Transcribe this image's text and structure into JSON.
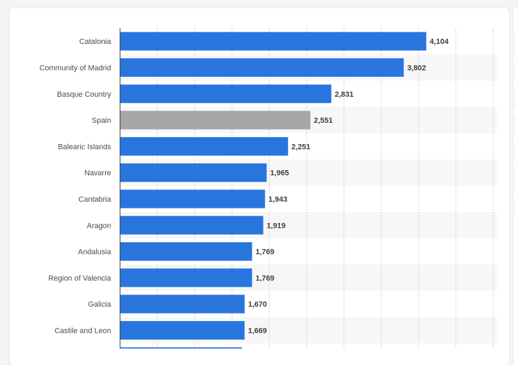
{
  "chart_data": {
    "type": "bar",
    "orientation": "horizontal",
    "categories": [
      "Catalonia",
      "Community of Madrid",
      "Basque Country",
      "Spain",
      "Balearic Islands",
      "Navarre",
      "Cantabria",
      "Aragon",
      "Andalusia",
      "Region of Valencia",
      "Galicia",
      "Castile and Leon"
    ],
    "values": [
      4104,
      3802,
      2831,
      2551,
      2251,
      1965,
      1943,
      1919,
      1769,
      1769,
      1670,
      1669
    ],
    "value_labels": [
      "4,104",
      "3,802",
      "2,831",
      "2,551",
      "2,251",
      "1,965",
      "1,943",
      "1,919",
      "1,769",
      "1,769",
      "1,670",
      "1,669"
    ],
    "highlight_category": "Spain",
    "colors": {
      "bar": "#2876dd",
      "highlight": "#a6a6a6",
      "band": "#f7f7f7",
      "grid": "#cccccc",
      "axis": "#333333"
    },
    "xlim": [
      0,
      5000
    ],
    "grid": true,
    "legend": false
  }
}
